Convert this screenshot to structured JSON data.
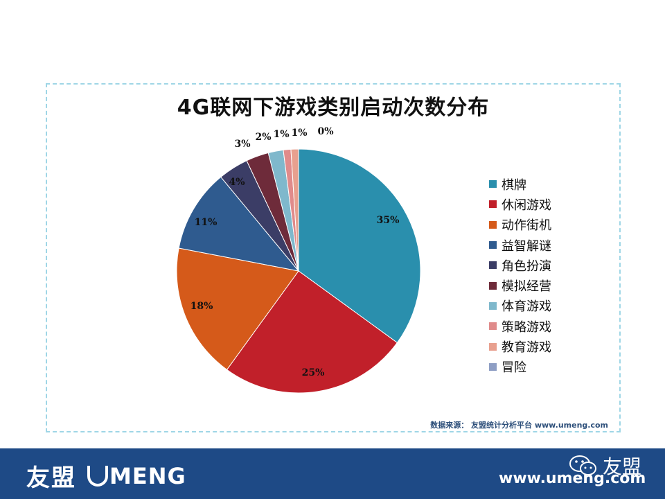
{
  "chart_data": {
    "type": "pie",
    "title": "4G联网下游戏类别启动次数分布",
    "categories": [
      "棋牌",
      "休闲游戏",
      "动作街机",
      "益智解谜",
      "角色扮演",
      "模拟经营",
      "体育游戏",
      "策略游戏",
      "教育游戏",
      "冒险"
    ],
    "values": [
      35,
      25,
      18,
      11,
      4,
      3,
      2,
      1,
      1,
      0
    ],
    "labels": [
      "35%",
      "25%",
      "18%",
      "11%",
      "4%",
      "3%",
      "2%",
      "1%",
      "1%",
      "0%"
    ],
    "colors": [
      "#2a8fad",
      "#c1202a",
      "#d55a1a",
      "#2f5b8f",
      "#3b3d66",
      "#6e2b3a",
      "#7fb8cc",
      "#e08b8b",
      "#e8a08f",
      "#8e9ec4"
    ],
    "legend_position": "right"
  },
  "source": "数据来源： 友盟统计分析平台 www.umeng.com",
  "footer": {
    "brand_cn": "友盟",
    "brand_en": "MENG",
    "url": "www.umeng.com",
    "wechat_label": "友盟",
    "wechat_icon": "wechat-icon"
  }
}
